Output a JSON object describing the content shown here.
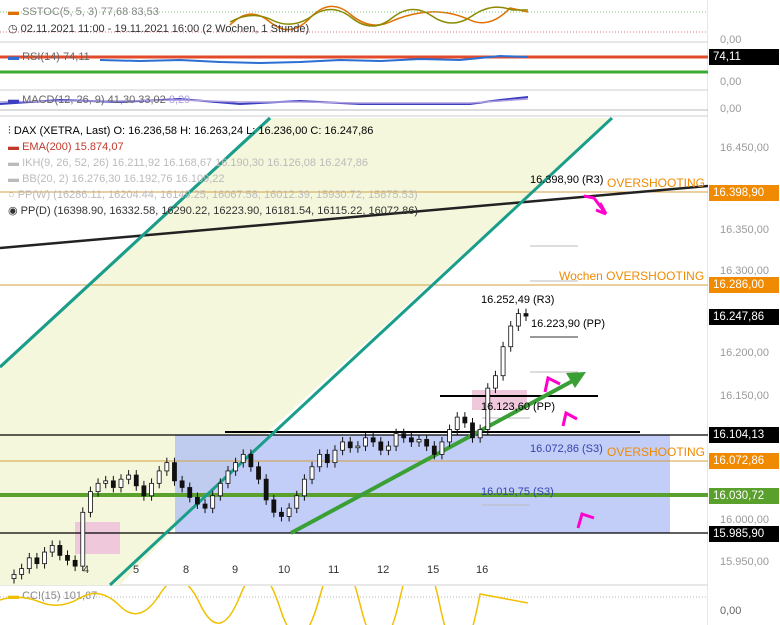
{
  "panels": {
    "sstoc": {
      "label": "SSTOC(5, 5, 3)",
      "v1": "77,68",
      "v2": "83,53",
      "color_a": "#e07000",
      "color_b": "#8a8a00"
    },
    "period": "02.11.2021 11:00 - 19.11.2021 16:00  (2 Wochen, 1 Stunde)",
    "rsi": {
      "label": "RSI(14)",
      "value": "74,11",
      "tag": "74,11",
      "zero": "0,00"
    },
    "macd": {
      "label": "MACD(12, 26, 9)",
      "v1": "41,30",
      "v2": "33,02",
      "v3": "8,29",
      "zero": "0,00"
    },
    "cci": {
      "label": "CCI(15)",
      "value": "101,67",
      "zero": "0,00"
    }
  },
  "legend": {
    "title": "DAX (XETRA, Last)  O: 16.236,58  H: 16.263,24  L: 16.236,00  C: 16.247,86",
    "ema": "EMA(200)  15.874,07",
    "ikh": "IKH(9, 26, 52, 26)  16.211,92  16.168,67  16.190,30  16.126,08  16.247,86",
    "bb": "BB(20, 2)  16.276,30  16.192,76  16.109,22",
    "ppw": "PP(W)  (16286.11, 16204.44, 16149.25, 16067.58, 16012.39, 15930.72, 15875.53)",
    "ppd": "PP(D)  (16398.90, 16332.58, 16290.22, 16223.90, 16181.54, 16115.22, 16072.86)"
  },
  "annotations": {
    "r3": "16.398,90 (R3)",
    "overshooting": "OVERSHOOTING",
    "wochen": "Wochen OVERSHOOTING",
    "r3d": "16.252,49 (R3)",
    "pp1": "16.223,90 (PP)",
    "pp2": "16.123,60 (PP)",
    "s3a": "16.072,86 (S3)",
    "s3b": "16.019,75 (S3)"
  },
  "price_tags": [
    {
      "text": "16.398,90",
      "color": "#f08a00"
    },
    {
      "text": "16.286,00",
      "color": "#f08a00"
    },
    {
      "text": "16.247,86",
      "color": "#000000"
    },
    {
      "text": "16.104,13",
      "color": "#000000"
    },
    {
      "text": "16.072,86",
      "color": "#f08a00"
    },
    {
      "text": "16.030,72",
      "color": "#5aa02c"
    },
    {
      "text": "15.985,90",
      "color": "#000000"
    }
  ],
  "chart_data": {
    "type": "candlestick",
    "y_ticks": [
      "16.450,00",
      "16.400,00",
      "16.350,00",
      "16.300,00",
      "16.250,00",
      "16.200,00",
      "16.150,00",
      "16.100,00",
      "16.050,00",
      "16.000,00",
      "15.950,00"
    ],
    "x_ticks": [
      "4",
      "5",
      "8",
      "9",
      "10",
      "11",
      "12",
      "15",
      "16"
    ],
    "ylim": [
      15925,
      16475
    ],
    "closes": [
      15935,
      15942,
      15955,
      15948,
      15962,
      15970,
      15958,
      15952,
      15945,
      16010,
      16035,
      16045,
      16048,
      16040,
      16050,
      16055,
      16042,
      16030,
      16045,
      16060,
      16070,
      16048,
      16040,
      16028,
      16020,
      16015,
      16030,
      16045,
      16060,
      16070,
      16080,
      16065,
      16050,
      16025,
      16010,
      16005,
      16015,
      16030,
      16050,
      16065,
      16080,
      16070,
      16085,
      16095,
      16088,
      16090,
      16100,
      16095,
      16085,
      16090,
      16105,
      16100,
      16095,
      16098,
      16090,
      16080,
      16095,
      16110,
      16125,
      16118,
      16100,
      16110,
      16160,
      16175,
      16210,
      16235,
      16250,
      16247
    ],
    "levels": {
      "ema200": 15874.07,
      "ppw": [
        16286.11,
        16204.44,
        16149.25,
        16067.58,
        16012.39,
        15930.72,
        15875.53
      ],
      "ppd": [
        16398.9,
        16332.58,
        16290.22,
        16223.9,
        16181.54,
        16115.22,
        16072.86
      ],
      "marked": [
        16398.9,
        16286.0,
        16104.13,
        16072.86,
        16030.72,
        15985.9
      ]
    }
  }
}
